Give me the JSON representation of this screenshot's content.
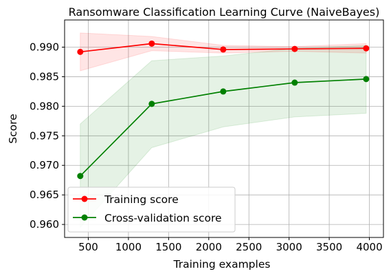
{
  "chart_data": {
    "type": "line",
    "title": "Ransomware Classification Learning Curve (NaiveBayes)",
    "xlabel": "Training examples",
    "ylabel": "Score",
    "xlim": [
      205,
      4175
    ],
    "ylim": [
      0.9578,
      0.9946
    ],
    "xticks": [
      500,
      1000,
      1500,
      2000,
      2500,
      3000,
      3500,
      4000
    ],
    "xtick_labels": [
      "500",
      "1000",
      "1500",
      "2000",
      "2500",
      "3000",
      "3500",
      "4000"
    ],
    "yticks": [
      0.96,
      0.965,
      0.97,
      0.975,
      0.98,
      0.985,
      0.99
    ],
    "ytick_labels": [
      "0.960",
      "0.965",
      "0.970",
      "0.975",
      "0.980",
      "0.985",
      "0.990"
    ],
    "grid": true,
    "legend_position": "lower-left",
    "x": [
      400,
      1290,
      2180,
      3070,
      3960
    ],
    "series": [
      {
        "name": "Training score",
        "color": "#ff0000",
        "values": [
          0.9892,
          0.9906,
          0.9896,
          0.9897,
          0.9898
        ],
        "band_lower": [
          0.986,
          0.9894,
          0.989,
          0.9893,
          0.989
        ],
        "band_upper": [
          0.9924,
          0.9918,
          0.9903,
          0.9901,
          0.9906
        ],
        "band_color": "#ff0000"
      },
      {
        "name": "Cross-validation score",
        "color": "#008000",
        "values": [
          0.9682,
          0.9804,
          0.9825,
          0.984,
          0.9846
        ],
        "band_lower": [
          0.9595,
          0.973,
          0.9765,
          0.9782,
          0.9788
        ],
        "band_upper": [
          0.977,
          0.9877,
          0.9885,
          0.9898,
          0.9903
        ],
        "band_color": "#008000"
      }
    ]
  }
}
